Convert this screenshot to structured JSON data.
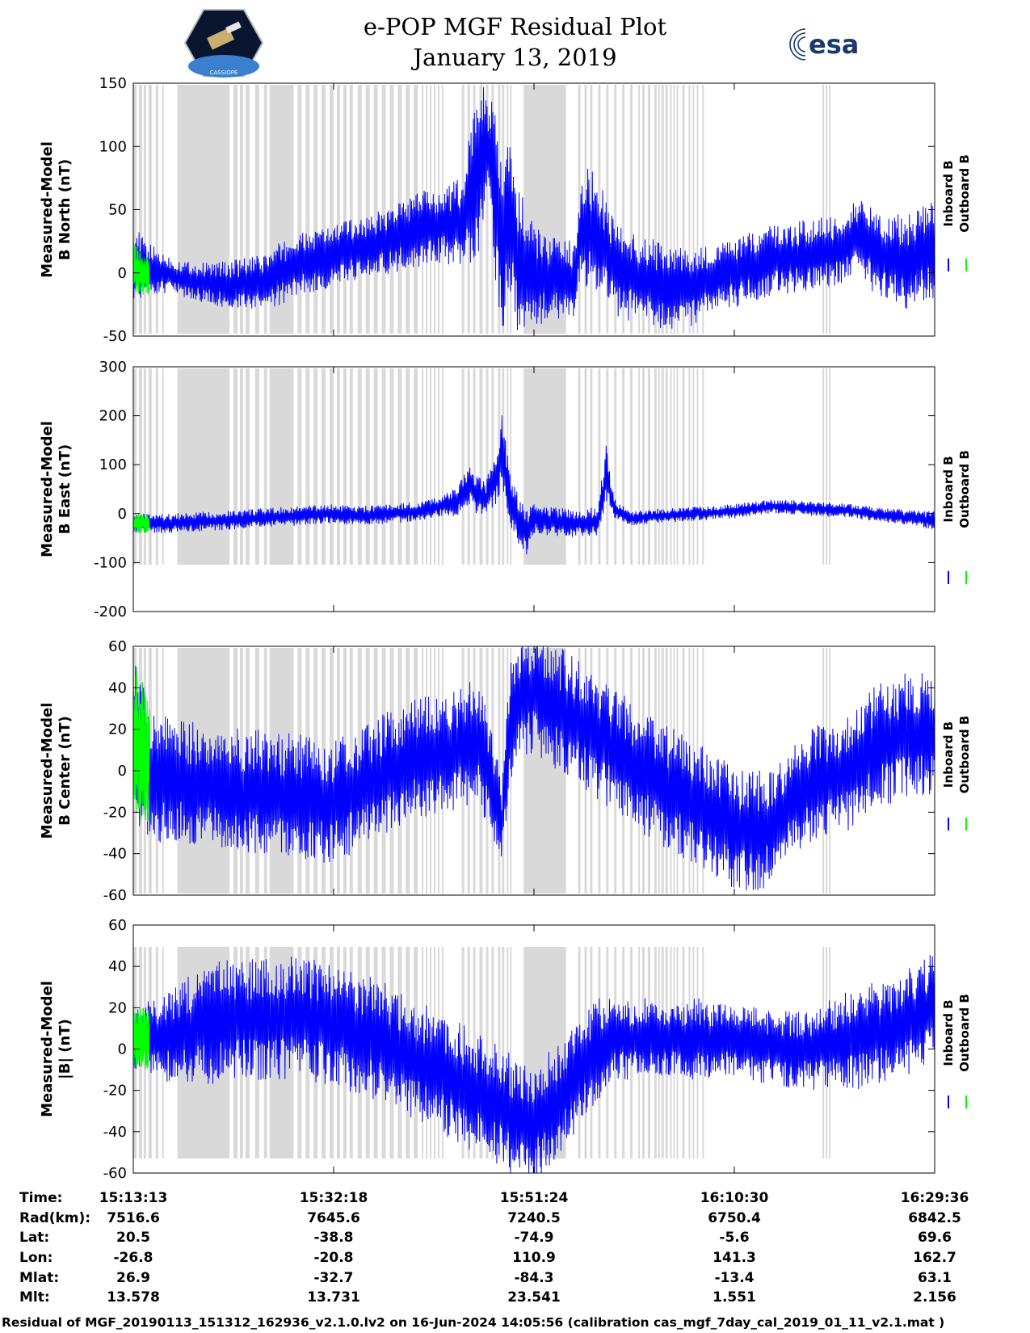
{
  "header": {
    "title": "e-POP MGF Residual Plot",
    "date": "January 13, 2019",
    "left_logo_caption": "CASSIOPE",
    "right_logo_text": "esa"
  },
  "colors": {
    "inboard": "#0000ff",
    "outboard": "#00ff00",
    "gap_shading": "#d9d9d9"
  },
  "chart_data": [
    {
      "type": "line",
      "ylabel": [
        "Measured-Model",
        "B North (nT)"
      ],
      "ylim": [
        -50,
        150
      ],
      "yticks": [
        150,
        100,
        50,
        0,
        -50
      ],
      "legend": [
        "Inboard B",
        "Outboard B"
      ],
      "legend_placement": "right",
      "series": [
        {
          "name": "Inboard B",
          "x": [
            0,
            0.02,
            0.05,
            0.08,
            0.12,
            0.16,
            0.18,
            0.2,
            0.24,
            0.27,
            0.3,
            0.33,
            0.36,
            0.38,
            0.41,
            0.43,
            0.44,
            0.45,
            0.46,
            0.47,
            0.48,
            0.5,
            0.52,
            0.55,
            0.56,
            0.58,
            0.6,
            0.63,
            0.66,
            0.7,
            0.72,
            0.75,
            0.8,
            0.85,
            0.88,
            0.9,
            0.93,
            0.96,
            1.0
          ],
          "y": [
            8,
            3,
            -3,
            -7,
            -10,
            -8,
            -2,
            5,
            12,
            18,
            22,
            28,
            35,
            38,
            40,
            80,
            105,
            70,
            15,
            45,
            10,
            -3,
            -5,
            -5,
            40,
            30,
            5,
            -5,
            -10,
            -12,
            -5,
            0,
            10,
            15,
            18,
            30,
            15,
            8,
            20
          ],
          "band": [
            30,
            20,
            15,
            15,
            20,
            22,
            25,
            25,
            25,
            25,
            25,
            28,
            30,
            30,
            35,
            70,
            50,
            60,
            80,
            60,
            60,
            40,
            35,
            30,
            50,
            45,
            40,
            35,
            35,
            30,
            28,
            28,
            28,
            28,
            28,
            30,
            35,
            38,
            40
          ]
        },
        {
          "name": "Outboard B",
          "x": [
            0,
            0.01,
            0.02
          ],
          "y": [
            5,
            0,
            -3
          ],
          "band": [
            20,
            18,
            15
          ]
        }
      ]
    },
    {
      "type": "line",
      "ylabel": [
        "Measured-Model",
        "B East (nT)"
      ],
      "ylim": [
        -200,
        300
      ],
      "yticks": [
        300,
        200,
        100,
        0,
        -100,
        -200
      ],
      "legend": [
        "Inboard B",
        "Outboard B"
      ],
      "legend_placement": "right",
      "series": [
        {
          "name": "Inboard B",
          "x": [
            0,
            0.04,
            0.1,
            0.15,
            0.2,
            0.24,
            0.28,
            0.32,
            0.36,
            0.38,
            0.4,
            0.42,
            0.43,
            0.44,
            0.45,
            0.46,
            0.47,
            0.48,
            0.49,
            0.5,
            0.52,
            0.54,
            0.56,
            0.58,
            0.59,
            0.6,
            0.62,
            0.65,
            0.7,
            0.75,
            0.8,
            0.85,
            0.9,
            0.95,
            1.0
          ],
          "y": [
            -20,
            -20,
            -15,
            -10,
            -5,
            0,
            -5,
            0,
            5,
            15,
            20,
            60,
            35,
            30,
            60,
            130,
            30,
            -10,
            -40,
            -10,
            -15,
            -20,
            -20,
            -15,
            80,
            10,
            -10,
            -5,
            0,
            5,
            15,
            10,
            5,
            -5,
            -15
          ],
          "band": [
            20,
            20,
            20,
            20,
            20,
            20,
            20,
            20,
            20,
            20,
            30,
            40,
            40,
            40,
            50,
            80,
            60,
            50,
            50,
            30,
            30,
            30,
            30,
            30,
            60,
            20,
            15,
            15,
            15,
            15,
            15,
            15,
            15,
            15,
            20
          ]
        },
        {
          "name": "Outboard B",
          "x": [
            0,
            0.01,
            0.02
          ],
          "y": [
            -20,
            -20,
            -20
          ],
          "band": [
            20,
            20,
            18
          ]
        }
      ]
    },
    {
      "type": "line",
      "ylabel": [
        "Measured-Model",
        "B Center (nT)"
      ],
      "ylim": [
        -60,
        60
      ],
      "yticks": [
        60,
        40,
        20,
        0,
        -20,
        -40,
        -60
      ],
      "legend": [
        "Inboard B",
        "Outboard B"
      ],
      "legend_placement": "right",
      "series": [
        {
          "name": "Inboard B",
          "x": [
            0,
            0.02,
            0.05,
            0.1,
            0.15,
            0.2,
            0.25,
            0.3,
            0.35,
            0.4,
            0.43,
            0.45,
            0.46,
            0.47,
            0.48,
            0.5,
            0.55,
            0.6,
            0.65,
            0.7,
            0.73,
            0.75,
            0.78,
            0.8,
            0.83,
            0.86,
            0.9,
            0.92,
            0.95,
            0.97,
            1.0
          ],
          "y": [
            15,
            0,
            -5,
            -8,
            -10,
            -12,
            -15,
            -5,
            5,
            10,
            15,
            -10,
            -25,
            20,
            35,
            38,
            25,
            10,
            -5,
            -15,
            -22,
            -28,
            -30,
            -25,
            -10,
            -5,
            0,
            10,
            15,
            18,
            18
          ],
          "band": [
            40,
            35,
            30,
            30,
            30,
            30,
            30,
            30,
            30,
            30,
            30,
            25,
            20,
            30,
            30,
            30,
            30,
            30,
            30,
            30,
            30,
            30,
            30,
            28,
            28,
            28,
            28,
            30,
            30,
            30,
            30
          ]
        },
        {
          "name": "Outboard B",
          "x": [
            0,
            0.01,
            0.02
          ],
          "y": [
            15,
            10,
            5
          ],
          "band": [
            40,
            35,
            30
          ]
        }
      ]
    },
    {
      "type": "line",
      "ylabel": [
        "Measured-Model",
        "|B| (nT)"
      ],
      "ylim": [
        -60,
        60
      ],
      "yticks": [
        60,
        40,
        20,
        0,
        -20,
        -40,
        -60
      ],
      "legend": [
        "Inboard B",
        "Outboard B"
      ],
      "legend_placement": "right",
      "series": [
        {
          "name": "Inboard B",
          "x": [
            0,
            0.03,
            0.06,
            0.1,
            0.15,
            0.2,
            0.25,
            0.3,
            0.35,
            0.4,
            0.45,
            0.48,
            0.5,
            0.53,
            0.56,
            0.58,
            0.6,
            0.65,
            0.7,
            0.75,
            0.8,
            0.85,
            0.9,
            0.95,
            1.0
          ],
          "y": [
            5,
            5,
            8,
            12,
            15,
            15,
            12,
            5,
            -5,
            -15,
            -25,
            -35,
            -35,
            -25,
            -10,
            0,
            5,
            5,
            5,
            5,
            0,
            0,
            5,
            10,
            20
          ],
          "band": [
            15,
            20,
            25,
            30,
            30,
            30,
            30,
            30,
            30,
            30,
            30,
            30,
            30,
            30,
            25,
            25,
            20,
            20,
            20,
            18,
            18,
            20,
            25,
            25,
            28
          ]
        },
        {
          "name": "Outboard B",
          "x": [
            0,
            0.01,
            0.02
          ],
          "y": [
            5,
            5,
            5
          ],
          "band": [
            15,
            15,
            15
          ]
        }
      ]
    }
  ],
  "x_axis": {
    "times": [
      "15:13:13",
      "15:32:18",
      "15:51:24",
      "16:10:30",
      "16:29:36"
    ]
  },
  "gaps": [
    [
      0.0,
      0.004
    ],
    [
      0.007,
      0.011
    ],
    [
      0.013,
      0.016
    ],
    [
      0.019,
      0.023
    ],
    [
      0.028,
      0.031
    ],
    [
      0.036,
      0.038
    ],
    [
      0.055,
      0.12
    ],
    [
      0.125,
      0.13
    ],
    [
      0.133,
      0.137
    ],
    [
      0.14,
      0.145
    ],
    [
      0.152,
      0.157
    ],
    [
      0.163,
      0.167
    ],
    [
      0.17,
      0.2
    ],
    [
      0.205,
      0.21
    ],
    [
      0.215,
      0.22
    ],
    [
      0.225,
      0.23
    ],
    [
      0.235,
      0.24
    ],
    [
      0.245,
      0.25
    ],
    [
      0.254,
      0.258
    ],
    [
      0.262,
      0.266
    ],
    [
      0.27,
      0.274
    ],
    [
      0.28,
      0.285
    ],
    [
      0.29,
      0.295
    ],
    [
      0.3,
      0.305
    ],
    [
      0.31,
      0.315
    ],
    [
      0.32,
      0.325
    ],
    [
      0.33,
      0.335
    ],
    [
      0.34,
      0.345
    ],
    [
      0.35,
      0.355
    ],
    [
      0.36,
      0.362
    ],
    [
      0.365,
      0.367
    ],
    [
      0.37,
      0.372
    ],
    [
      0.375,
      0.377
    ],
    [
      0.38,
      0.382
    ],
    [
      0.385,
      0.387
    ],
    [
      0.41,
      0.413
    ],
    [
      0.417,
      0.42
    ],
    [
      0.424,
      0.427
    ],
    [
      0.432,
      0.436
    ],
    [
      0.44,
      0.443
    ],
    [
      0.447,
      0.45
    ],
    [
      0.455,
      0.458
    ],
    [
      0.46,
      0.463
    ],
    [
      0.466,
      0.468
    ],
    [
      0.47,
      0.472
    ],
    [
      0.487,
      0.54
    ],
    [
      0.555,
      0.558
    ],
    [
      0.563,
      0.566
    ],
    [
      0.57,
      0.573
    ],
    [
      0.58,
      0.583
    ],
    [
      0.59,
      0.593
    ],
    [
      0.6,
      0.603
    ],
    [
      0.61,
      0.613
    ],
    [
      0.62,
      0.623
    ],
    [
      0.63,
      0.632
    ],
    [
      0.635,
      0.638
    ],
    [
      0.642,
      0.645
    ],
    [
      0.65,
      0.653
    ],
    [
      0.655,
      0.657
    ],
    [
      0.659,
      0.662
    ],
    [
      0.664,
      0.667
    ],
    [
      0.67,
      0.672
    ],
    [
      0.674,
      0.676
    ],
    [
      0.678,
      0.68
    ],
    [
      0.685,
      0.688
    ],
    [
      0.693,
      0.695
    ],
    [
      0.698,
      0.7
    ],
    [
      0.703,
      0.705
    ],
    [
      0.71,
      0.712
    ],
    [
      0.86,
      0.862
    ],
    [
      0.864,
      0.866
    ],
    [
      0.868,
      0.87
    ]
  ],
  "info_table": {
    "labels": [
      "Time:",
      "Rad(km):",
      "Lat:",
      "Lon:",
      "Mlat:",
      "Mlt:"
    ],
    "columns": [
      [
        "15:13:13",
        "7516.6",
        "20.5",
        "-26.8",
        "26.9",
        "13.578"
      ],
      [
        "15:32:18",
        "7645.6",
        "-38.8",
        "-20.8",
        "-32.7",
        "13.731"
      ],
      [
        "15:51:24",
        "7240.5",
        "-74.9",
        "110.9",
        "-84.3",
        "23.541"
      ],
      [
        "16:10:30",
        "6750.4",
        "-5.6",
        "141.3",
        "-13.4",
        "1.551"
      ],
      [
        "16:29:36",
        "6842.5",
        "69.6",
        "162.7",
        "63.1",
        "2.156"
      ]
    ]
  },
  "footer": "Residual of MGF_20190113_151312_162936_v2.1.0.lv2 on 16-Jun-2024 14:05:56 (calibration cas_mgf_7day_cal_2019_01_11_v2.1.mat )"
}
